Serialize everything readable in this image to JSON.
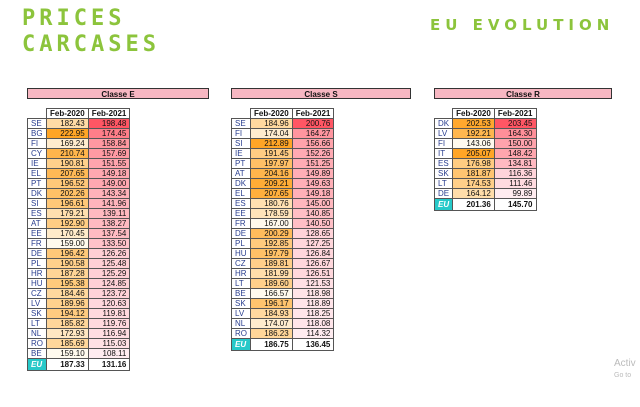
{
  "title": {
    "line1": "PRICES",
    "line2": "CARCASES"
  },
  "subtitle": "EU EVOLUTION",
  "col1": "Feb-2020",
  "col2": "Feb-2021",
  "tables": [
    {
      "name": "Classe E",
      "rows": [
        [
          "SE",
          "182.43",
          "198.48"
        ],
        [
          "BG",
          "222.95",
          "174.45"
        ],
        [
          "FI",
          "169.24",
          "158.84"
        ],
        [
          "CY",
          "210.74",
          "157.69"
        ],
        [
          "IE",
          "190.81",
          "151.55"
        ],
        [
          "EL",
          "207.65",
          "149.18"
        ],
        [
          "PT",
          "196.52",
          "149.00"
        ],
        [
          "DK",
          "202.26",
          "143.34"
        ],
        [
          "SI",
          "196.61",
          "141.96"
        ],
        [
          "ES",
          "179.21",
          "139.11"
        ],
        [
          "AT",
          "192.90",
          "138.27"
        ],
        [
          "EE",
          "170.45",
          "137.54"
        ],
        [
          "FR",
          "159.00",
          "133.50"
        ],
        [
          "DE",
          "196.42",
          "126.26"
        ],
        [
          "PL",
          "190.58",
          "125.48"
        ],
        [
          "HR",
          "187.28",
          "125.29"
        ],
        [
          "HU",
          "195.38",
          "124.85"
        ],
        [
          "CZ",
          "184.46",
          "123.72"
        ],
        [
          "LV",
          "189.96",
          "120.63"
        ],
        [
          "SK",
          "194.12",
          "119.81"
        ],
        [
          "LT",
          "185.82",
          "119.76"
        ],
        [
          "NL",
          "172.93",
          "116.94"
        ],
        [
          "RO",
          "185.69",
          "115.03"
        ],
        [
          "BE",
          "159.10",
          "108.11"
        ]
      ],
      "eu": [
        "EU",
        "187.33",
        "131.16"
      ]
    },
    {
      "name": "Classe S",
      "rows": [
        [
          "SE",
          "184.96",
          "200.76"
        ],
        [
          "FI",
          "174.04",
          "164.27"
        ],
        [
          "SI",
          "212.89",
          "156.66"
        ],
        [
          "IE",
          "191.45",
          "152.26"
        ],
        [
          "PT",
          "197.97",
          "151.25"
        ],
        [
          "AT",
          "204.16",
          "149.89"
        ],
        [
          "DK",
          "209.21",
          "149.63"
        ],
        [
          "EL",
          "207.65",
          "149.18"
        ],
        [
          "ES",
          "180.76",
          "145.00"
        ],
        [
          "EE",
          "178.59",
          "140.85"
        ],
        [
          "FR",
          "167.00",
          "140.50"
        ],
        [
          "DE",
          "200.29",
          "128.65"
        ],
        [
          "PL",
          "192.85",
          "127.25"
        ],
        [
          "HU",
          "197.79",
          "126.84"
        ],
        [
          "CZ",
          "189.81",
          "126.67"
        ],
        [
          "HR",
          "181.99",
          "126.51"
        ],
        [
          "LT",
          "189.60",
          "121.53"
        ],
        [
          "BE",
          "166.57",
          "118.98"
        ],
        [
          "SK",
          "196.17",
          "118.89"
        ],
        [
          "LV",
          "184.93",
          "118.25"
        ],
        [
          "NL",
          "174.07",
          "118.08"
        ],
        [
          "RO",
          "186.23",
          "114.32"
        ]
      ],
      "eu": [
        "EU",
        "186.75",
        "136.45"
      ]
    },
    {
      "name": "Classe R",
      "rows": [
        [
          "DK",
          "202.53",
          "203.45"
        ],
        [
          "LV",
          "192.21",
          "164.30"
        ],
        [
          "FI",
          "143.06",
          "150.00"
        ],
        [
          "IT",
          "205.07",
          "148.42"
        ],
        [
          "ES",
          "176.98",
          "134.81"
        ],
        [
          "SK",
          "181.87",
          "116.36"
        ],
        [
          "LT",
          "174.53",
          "111.46"
        ],
        [
          "DE",
          "164.12",
          "99.89"
        ]
      ],
      "eu": [
        "EU",
        "201.36",
        "145.70"
      ]
    }
  ],
  "watermark": {
    "line1": "Activ",
    "line2": "Go to"
  }
}
